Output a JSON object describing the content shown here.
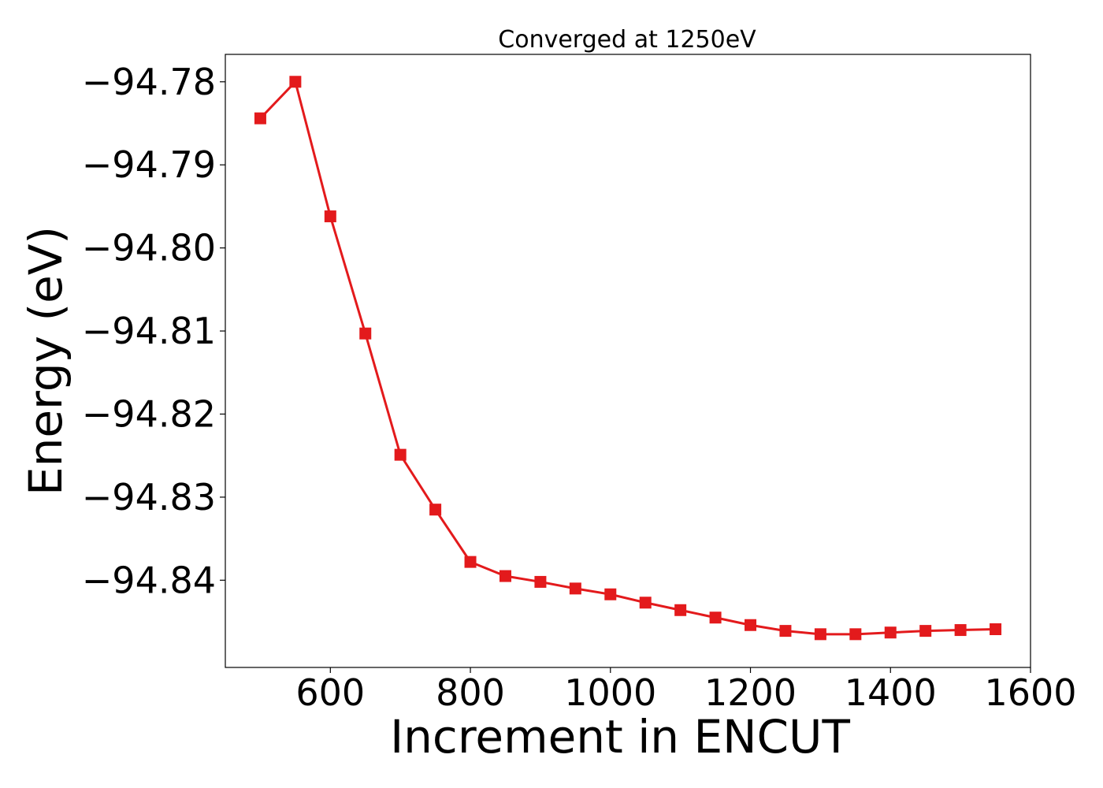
{
  "chart_data": {
    "type": "line",
    "title": "Converged at 1250eV",
    "xlabel": "Increment in ENCUT",
    "ylabel": "Energy (eV)",
    "xlim": [
      450,
      1600
    ],
    "ylim": [
      -94.8505,
      -94.7767
    ],
    "x_ticks": [
      600,
      800,
      1000,
      1200,
      1400,
      1600
    ],
    "y_ticks": [
      -94.78,
      -94.79,
      -94.8,
      -94.81,
      -94.82,
      -94.83,
      -94.84
    ],
    "y_tick_labels": [
      "−94.78",
      "−94.79",
      "−94.80",
      "−94.81",
      "−94.82",
      "−94.83",
      "−94.84"
    ],
    "grid": false,
    "series": [
      {
        "color": "#e31a1c",
        "marker": "square",
        "x": [
          500,
          550,
          600,
          650,
          700,
          750,
          800,
          850,
          900,
          950,
          1000,
          1050,
          1100,
          1150,
          1200,
          1250,
          1300,
          1350,
          1400,
          1450,
          1500,
          1550
        ],
        "y": [
          -94.7844,
          -94.78,
          -94.7962,
          -94.8103,
          -94.8249,
          -94.8315,
          -94.8378,
          -94.8395,
          -94.8402,
          -94.841,
          -94.8417,
          -94.8427,
          -94.8436,
          -94.8445,
          -94.8454,
          -94.8461,
          -94.8465,
          -94.8465,
          -94.8463,
          -94.8461,
          -94.846,
          -94.8459
        ]
      }
    ]
  }
}
